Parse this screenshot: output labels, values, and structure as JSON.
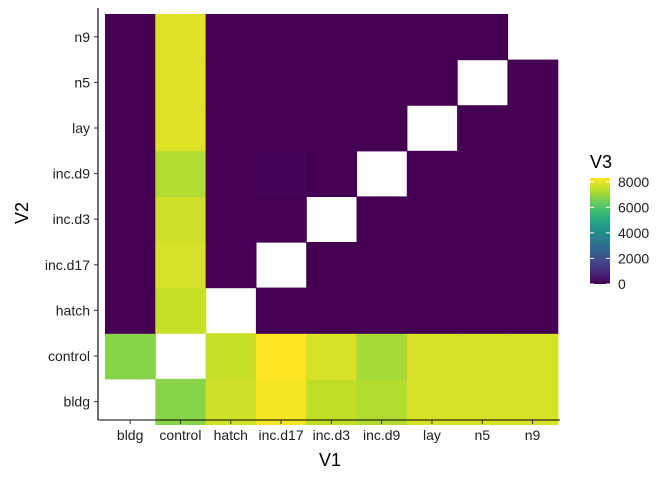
{
  "chart_data": {
    "type": "heatmap",
    "title": "",
    "xlabel": "V1",
    "ylabel": "V2",
    "x_categories": [
      "bldg",
      "control",
      "hatch",
      "inc.d17",
      "inc.d3",
      "inc.d9",
      "lay",
      "n5",
      "n9"
    ],
    "y_categories": [
      "bldg",
      "control",
      "hatch",
      "inc.d17",
      "inc.d3",
      "inc.d9",
      "lay",
      "n5",
      "n9"
    ],
    "fill_variable": "V3",
    "color_scale": "viridis",
    "color_range": [
      0,
      8300
    ],
    "legend": {
      "title": "V3",
      "ticks": [
        0,
        2000,
        4000,
        6000,
        8000
      ],
      "tick_labels": [
        "0",
        "2000",
        "4000",
        "6000",
        "8000"
      ],
      "placement": "right"
    },
    "missing": "diagonal and n9 vs n9",
    "values": [
      [
        null,
        6800,
        7700,
        8200,
        7500,
        7300,
        7800,
        7800,
        7800
      ],
      [
        6800,
        null,
        7600,
        8300,
        7800,
        7200,
        7800,
        7800,
        7800
      ],
      [
        0,
        7600,
        null,
        0,
        0,
        0,
        0,
        0,
        0
      ],
      [
        0,
        7800,
        0,
        null,
        0,
        0,
        0,
        0,
        0
      ],
      [
        0,
        7700,
        0,
        0,
        null,
        0,
        0,
        0,
        0
      ],
      [
        0,
        7300,
        0,
        100,
        0,
        null,
        0,
        0,
        0
      ],
      [
        0,
        7900,
        0,
        0,
        0,
        0,
        null,
        0,
        0
      ],
      [
        0,
        7900,
        0,
        0,
        0,
        0,
        0,
        null,
        0
      ],
      [
        0,
        7900,
        0,
        0,
        0,
        0,
        0,
        0,
        null
      ]
    ]
  }
}
